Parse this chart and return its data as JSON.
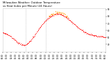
{
  "bg_color": "#ffffff",
  "plot_bg_color": "#ffffff",
  "text_color": "#000000",
  "temp_color": "#ff0000",
  "heat_color": "#ff9900",
  "vline_color": "#aaaaaa",
  "spine_color": "#cccccc",
  "title_line1": "Milwaukee Weather: Outdoor Temperature",
  "title_line2": "vs Heat Index per Minute (24 Hours)",
  "ylim_min": 30,
  "ylim_max": 92,
  "xlim_min": 0,
  "xlim_max": 1440,
  "yticks": [
    40,
    50,
    60,
    70,
    80,
    90
  ],
  "vline_x1": 317,
  "vline_x2": 600,
  "seed": 42
}
